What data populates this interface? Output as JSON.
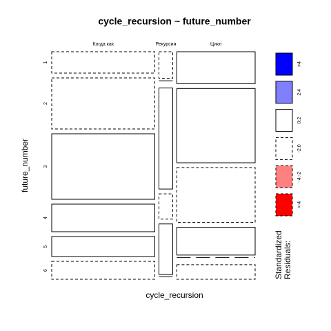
{
  "chart_data": {
    "type": "mosaic",
    "title": "cycle_recursion ~ future_number",
    "xlabel": "cycle_recursion",
    "ylabel": "future_number",
    "categories": [
      "Когда как",
      "Рекурсия",
      "Цикл"
    ],
    "rows": [
      "1",
      "2",
      "3",
      "4",
      "5",
      "6"
    ],
    "column_totals": [
      150,
      20,
      114
    ],
    "values": [
      [
        31,
        74,
        95,
        40,
        29,
        26
      ],
      [
        39,
        0,
        148,
        37,
        74,
        0
      ],
      [
        46,
        107,
        79,
        40,
        0,
        21
      ]
    ],
    "residual_bin": [
      [
        3,
        3,
        2,
        2,
        2,
        3
      ],
      [
        3,
        3,
        2,
        3,
        2,
        3
      ],
      [
        2,
        2,
        3,
        2,
        3,
        3
      ]
    ],
    "legend": {
      "title": [
        "Standardized",
        "Residuals:"
      ],
      "labels": [
        ">4",
        "2:4",
        "0:2",
        "-2:0",
        "-4:-2",
        "<-4"
      ],
      "colors": [
        "#0000ff",
        "#8080ff",
        "#ffffff",
        "#ffffff",
        "#ff8080",
        "#ff0000"
      ],
      "dashed": [
        false,
        false,
        false,
        true,
        true,
        true
      ]
    }
  }
}
